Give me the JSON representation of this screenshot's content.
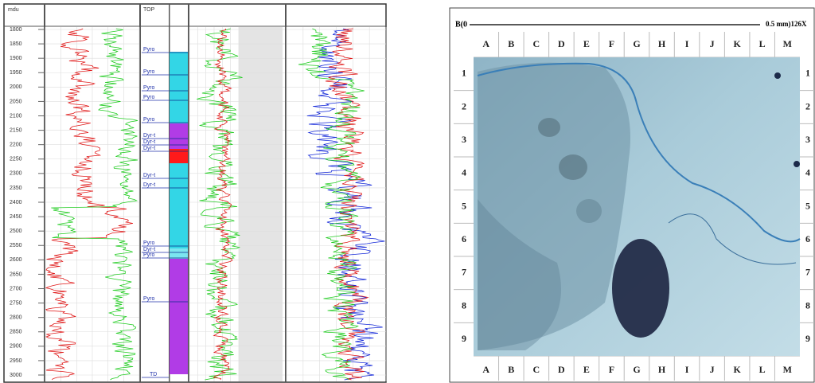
{
  "well_log": {
    "depth_header": "mdu",
    "top_header": "TOP",
    "depth_labels": [
      "1800",
      "1850",
      "1900",
      "1950",
      "2000",
      "2050",
      "2100",
      "2150",
      "2200",
      "2250",
      "2300",
      "2350",
      "2400",
      "2450",
      "2500",
      "2550",
      "2600",
      "2650",
      "2700",
      "2750",
      "2800",
      "2850",
      "2900",
      "2950",
      "3000"
    ],
    "tops": [
      "Pyro",
      "Pyro",
      "Pyro",
      "Pyro",
      "Pyro",
      "Dyr-t",
      "Dyr-t",
      "Dyr-t",
      "Dyr-t",
      "Dyr-t",
      "Pyro",
      "Dyr-t",
      "Pyro",
      "Pyro",
      "TD"
    ]
  },
  "thin_section": {
    "scale_start": "B(0",
    "scale_end": "0.5 mm)126X",
    "columns": [
      "A",
      "B",
      "C",
      "D",
      "E",
      "F",
      "G",
      "H",
      "I",
      "J",
      "K",
      "L",
      "M"
    ],
    "rows": [
      "1",
      "2",
      "3",
      "4",
      "5",
      "6",
      "7",
      "8",
      "9"
    ]
  }
}
